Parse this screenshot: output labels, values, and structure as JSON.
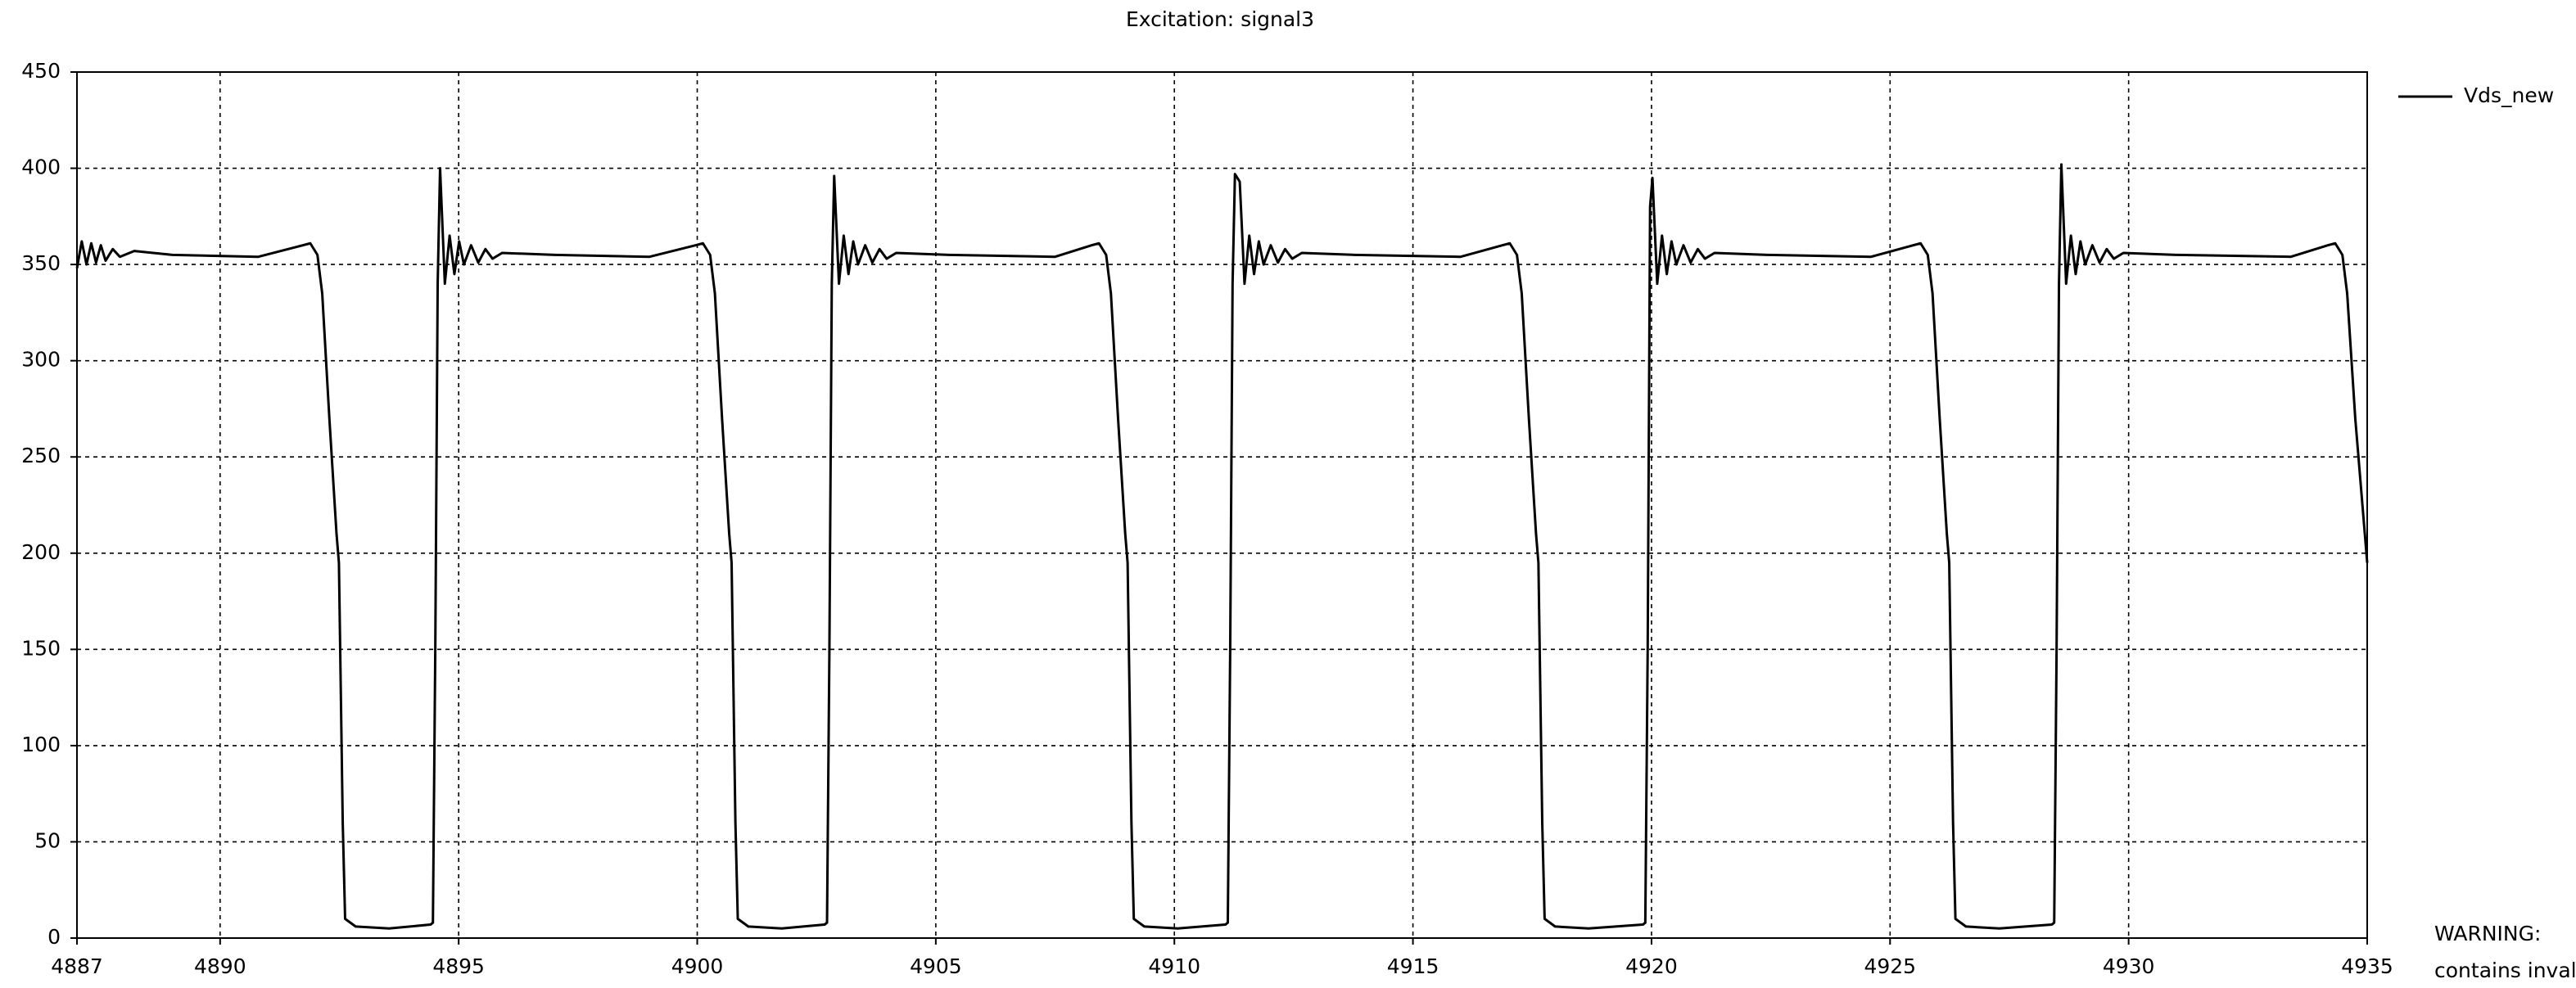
{
  "chart_data": {
    "type": "line",
    "title": "Excitation: signal3",
    "annotations": [
      "WARNING:",
      "contains inval"
    ],
    "legend": "right",
    "grid": true,
    "xlim": [
      4887,
      4935
    ],
    "xticks": [
      4887,
      4890,
      4895,
      4900,
      4905,
      4910,
      4915,
      4920,
      4925,
      4930,
      4935
    ],
    "ylim": [
      0,
      450
    ],
    "yticks": [
      0,
      50,
      100,
      150,
      200,
      250,
      300,
      350,
      400,
      450
    ],
    "x": [
      4887.0,
      4887.1,
      4887.2,
      4887.3,
      4887.4,
      4887.5,
      4887.6,
      4887.75,
      4887.9,
      4888.2,
      4889.0,
      4890.8,
      4891.74,
      4891.89,
      4892.04,
      4892.14,
      4892.29,
      4892.44,
      4892.49,
      4892.57,
      4892.62,
      4892.84,
      4893.54,
      4894.41,
      4894.46,
      4894.51,
      4894.56,
      4894.61,
      4894.71,
      4894.81,
      4894.91,
      4895.01,
      4895.11,
      4895.26,
      4895.41,
      4895.56,
      4895.71,
      4895.91,
      4897.01,
      4899.0,
      4899.97,
      4900.12,
      4900.27,
      4900.37,
      4900.52,
      4900.67,
      4900.72,
      4900.8,
      4900.85,
      4901.07,
      4901.77,
      4902.67,
      4902.72,
      4902.77,
      4902.82,
      4902.87,
      4902.97,
      4903.07,
      4903.17,
      4903.27,
      4903.37,
      4903.52,
      4903.67,
      4903.82,
      4903.97,
      4904.17,
      4905.27,
      4907.5,
      4908.27,
      4908.42,
      4908.57,
      4908.67,
      4908.82,
      4908.97,
      4909.02,
      4909.1,
      4909.15,
      4909.37,
      4910.07,
      4911.07,
      4911.12,
      4911.17,
      4911.22,
      4911.27,
      4911.37,
      4911.47,
      4911.57,
      4911.67,
      4911.77,
      4911.87,
      4912.02,
      4912.17,
      4912.32,
      4912.47,
      4912.67,
      4913.77,
      4916.0,
      4916.88,
      4917.03,
      4917.18,
      4917.28,
      4917.43,
      4917.58,
      4917.63,
      4917.71,
      4917.76,
      4917.98,
      4918.68,
      4919.82,
      4919.87,
      4919.92,
      4919.97,
      4920.02,
      4920.12,
      4920.22,
      4920.32,
      4920.42,
      4920.52,
      4920.67,
      4920.82,
      4920.97,
      4921.12,
      4921.32,
      4922.42,
      4924.6,
      4925.49,
      4925.64,
      4925.79,
      4925.89,
      4926.04,
      4926.19,
      4926.24,
      4926.32,
      4926.37,
      4926.59,
      4927.29,
      4928.39,
      4928.44,
      4928.49,
      4928.54,
      4928.59,
      4928.69,
      4928.79,
      4928.89,
      4928.99,
      4929.09,
      4929.24,
      4929.39,
      4929.54,
      4929.69,
      4929.89,
      4930.99,
      4933.4,
      4934.18,
      4934.33,
      4934.48,
      4934.58,
      4934.75,
      4935.0
    ],
    "series": [
      {
        "name": "Vds_new",
        "color": "#000000",
        "values": [
          348,
          362,
          350,
          361,
          351,
          360,
          352,
          358,
          354,
          357,
          355,
          354,
          360,
          361,
          355,
          335,
          270,
          210,
          195,
          60,
          10,
          6,
          5,
          7,
          8,
          150,
          340,
          400,
          340,
          365,
          345,
          362,
          350,
          360,
          351,
          358,
          353,
          356,
          355,
          354,
          360,
          361,
          355,
          335,
          270,
          210,
          195,
          60,
          10,
          6,
          5,
          7,
          8,
          150,
          340,
          396,
          340,
          365,
          345,
          362,
          350,
          360,
          351,
          358,
          353,
          356,
          355,
          354,
          360,
          361,
          355,
          335,
          270,
          210,
          195,
          60,
          10,
          6,
          5,
          7,
          8,
          150,
          340,
          397,
          393,
          340,
          365,
          345,
          362,
          350,
          360,
          351,
          358,
          353,
          356,
          355,
          354,
          360,
          361,
          355,
          335,
          270,
          210,
          195,
          60,
          10,
          6,
          5,
          7,
          8,
          150,
          380,
          395,
          340,
          365,
          345,
          362,
          350,
          360,
          351,
          358,
          353,
          356,
          355,
          354,
          360,
          361,
          355,
          335,
          270,
          210,
          195,
          60,
          10,
          6,
          5,
          7,
          8,
          150,
          340,
          402,
          340,
          365,
          345,
          362,
          350,
          360,
          351,
          358,
          353,
          356,
          355,
          354,
          360,
          361,
          355,
          335,
          270,
          195
        ]
      }
    ]
  }
}
